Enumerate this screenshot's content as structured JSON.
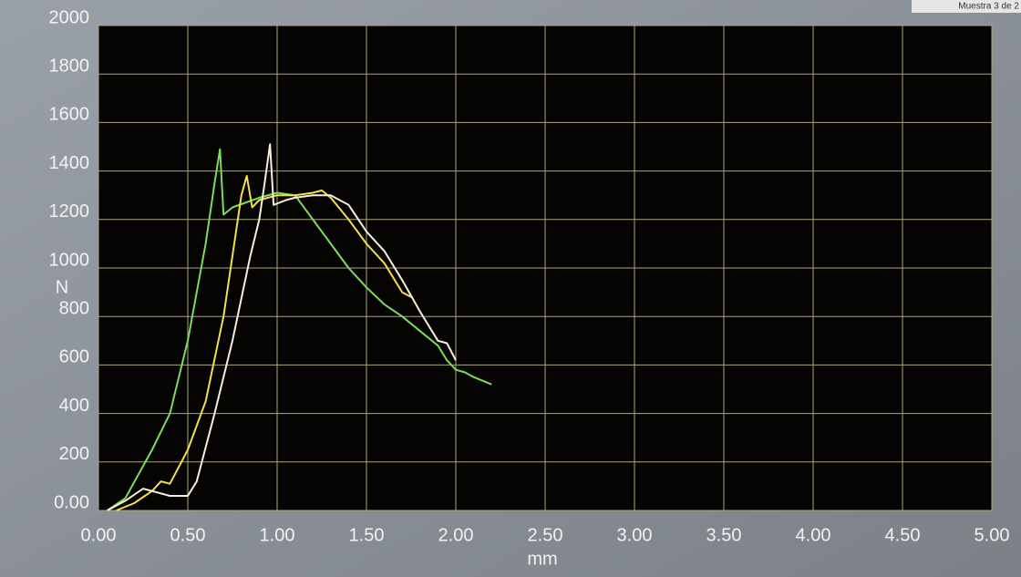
{
  "chart_data": {
    "type": "line",
    "header_note": "Muestra 3 de 2",
    "x_label": "mm",
    "y_label": "N",
    "xlim": [
      0,
      5
    ],
    "ylim": [
      0,
      2000
    ],
    "xticks": [
      {
        "value": 0,
        "label": "0.00"
      },
      {
        "value": 0.5,
        "label": "0.50"
      },
      {
        "value": 1,
        "label": "1.00"
      },
      {
        "value": 1.5,
        "label": "1.50"
      },
      {
        "value": 2,
        "label": "2.00"
      },
      {
        "value": 2.5,
        "label": "2.50"
      },
      {
        "value": 3,
        "label": "3.00"
      },
      {
        "value": 3.5,
        "label": "3.50"
      },
      {
        "value": 4,
        "label": "4.00"
      },
      {
        "value": 4.5,
        "label": "4.50"
      },
      {
        "value": 5,
        "label": "5.00"
      }
    ],
    "yticks": [
      {
        "value": 0,
        "label": "0.00"
      },
      200,
      400,
      600,
      800,
      1000,
      1200,
      1400,
      1600,
      1800,
      2000
    ],
    "grid": true,
    "grid_color": "#a8a878",
    "series": [
      {
        "color": "#7ddc5a",
        "x": [
          0.05,
          0.15,
          0.3,
          0.4,
          0.5,
          0.6,
          0.65,
          0.68,
          0.7,
          0.75,
          0.9,
          1.0,
          1.1,
          1.2,
          1.3,
          1.4,
          1.5,
          1.6,
          1.7,
          1.8,
          1.9,
          1.95,
          2.0,
          2.05,
          2.1,
          2.2
        ],
        "values": [
          0,
          50,
          250,
          400,
          700,
          1100,
          1350,
          1490,
          1220,
          1250,
          1290,
          1310,
          1300,
          1200,
          1100,
          1000,
          920,
          850,
          800,
          740,
          680,
          620,
          580,
          570,
          550,
          520
        ]
      },
      {
        "color": "#f2e04a",
        "x": [
          0.1,
          0.2,
          0.3,
          0.35,
          0.4,
          0.5,
          0.6,
          0.7,
          0.75,
          0.8,
          0.83,
          0.86,
          0.9,
          1.0,
          1.1,
          1.2,
          1.25,
          1.3,
          1.4,
          1.5,
          1.6,
          1.7,
          1.75
        ],
        "values": [
          0,
          30,
          80,
          120,
          110,
          250,
          450,
          800,
          1050,
          1300,
          1380,
          1250,
          1280,
          1300,
          1300,
          1310,
          1320,
          1290,
          1200,
          1100,
          1020,
          900,
          880
        ]
      },
      {
        "color": "#f4f0dc",
        "x": [
          0.05,
          0.15,
          0.25,
          0.3,
          0.4,
          0.5,
          0.55,
          0.65,
          0.75,
          0.85,
          0.9,
          0.93,
          0.96,
          0.98,
          1.05,
          1.1,
          1.2,
          1.3,
          1.4,
          1.5,
          1.6,
          1.7,
          1.8,
          1.9,
          1.95,
          2.0
        ],
        "values": [
          0,
          40,
          90,
          80,
          60,
          60,
          120,
          400,
          700,
          1050,
          1200,
          1350,
          1510,
          1260,
          1280,
          1290,
          1300,
          1300,
          1260,
          1150,
          1070,
          950,
          820,
          700,
          690,
          620
        ]
      }
    ]
  }
}
